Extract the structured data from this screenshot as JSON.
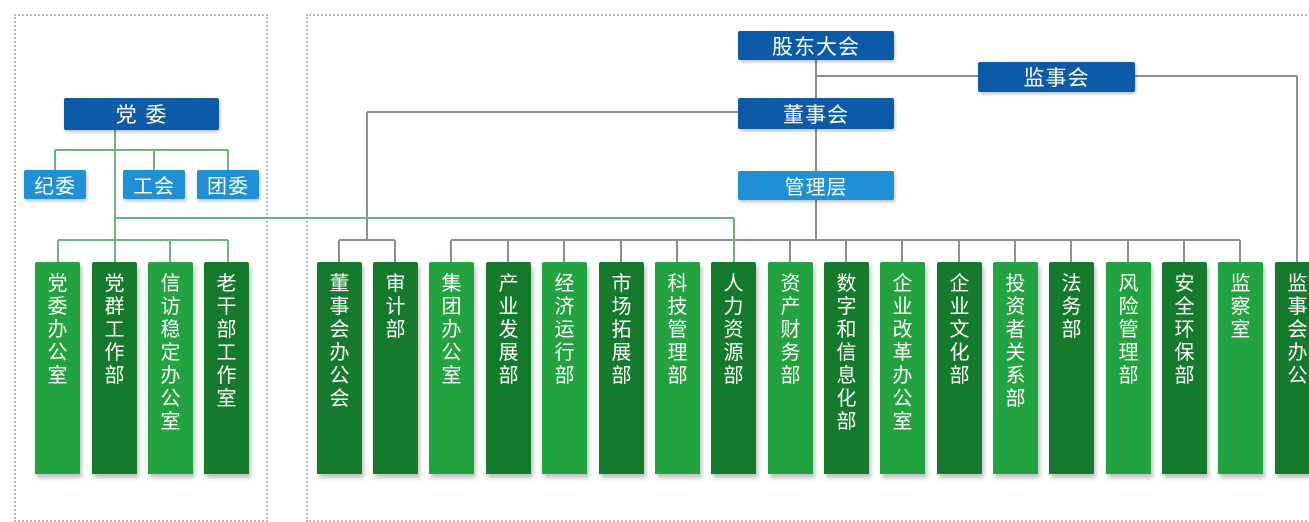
{
  "colors": {
    "dark_blue": "#0d5aa8",
    "light_blue": "#1f8fd6",
    "green_light": "#22a33f",
    "green_dark": "#157a2c",
    "line_gray": "#8d8d8d",
    "line_green": "#6fb27f"
  },
  "top": {
    "shareholders": "股东大会",
    "supervisory_board": "监事会",
    "board": "董事会",
    "management": "管理层"
  },
  "party": {
    "committee": "党 委",
    "discipline": "纪委",
    "union": "工会",
    "youth": "团委"
  },
  "departments": [
    "党委办公室",
    "党群工作部",
    "信访稳定办公室",
    "老干部工作室",
    "董事会办公会",
    "审计部",
    "集团办公室",
    "产业发展部",
    "经济运行部",
    "市场拓展部",
    "科技管理部",
    "人力资源部",
    "资产财务部",
    "数字和信息化部",
    "企业改革办公室",
    "企业文化部",
    "投资者关系部",
    "法务部",
    "风险管理部",
    "安全环保部",
    "监察室",
    "监事会办公"
  ]
}
